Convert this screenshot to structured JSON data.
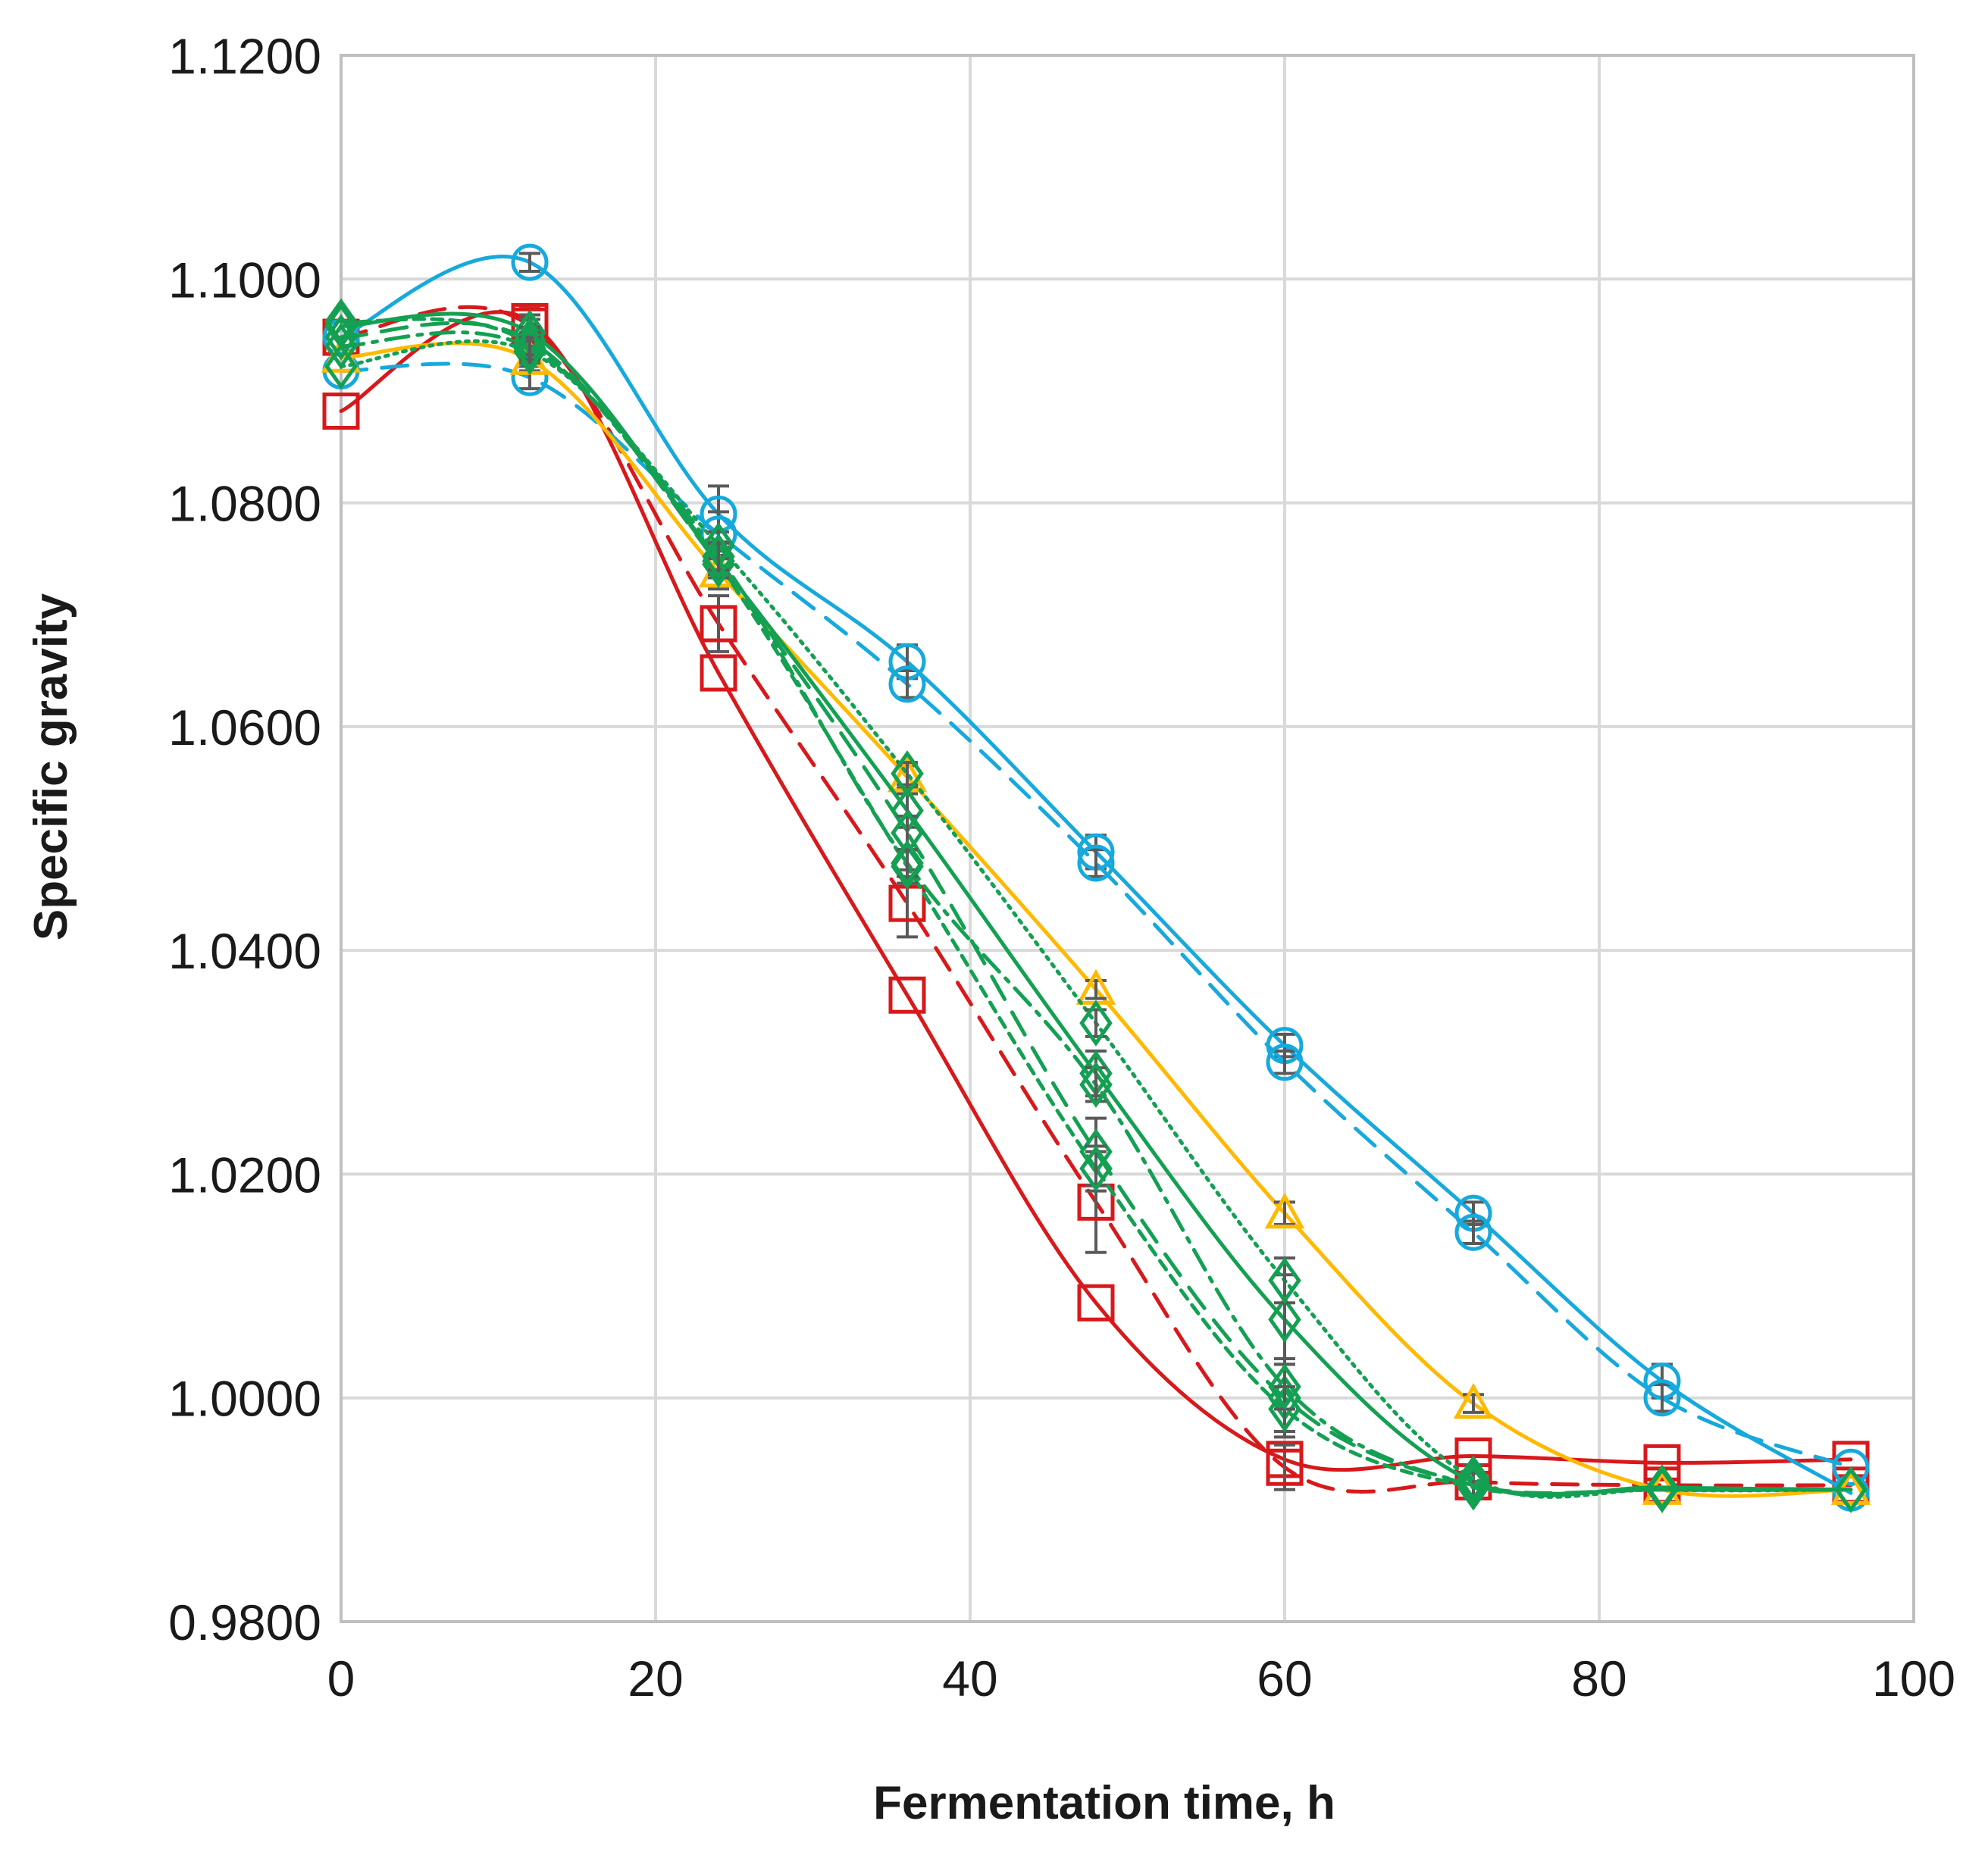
{
  "chart_data": {
    "type": "line",
    "title": "",
    "xlabel": "Fermentation time, h",
    "ylabel": "Specific gravity",
    "xlim": [
      0,
      100
    ],
    "ylim": [
      0.98,
      1.12
    ],
    "x_ticks": [
      0,
      20,
      40,
      60,
      80,
      100
    ],
    "x_tick_labels": [
      "0",
      "20",
      "40",
      "60",
      "80",
      "100"
    ],
    "y_ticks": [
      0.98,
      1.0,
      1.02,
      1.04,
      1.06,
      1.08,
      1.1,
      1.12
    ],
    "y_tick_labels": [
      "0.9800",
      "1.0000",
      "1.0200",
      "1.0400",
      "1.0600",
      "1.0800",
      "1.1000",
      "1.1200"
    ],
    "grid": true,
    "legend": "none",
    "x": [
      0,
      12,
      24,
      36,
      48,
      60,
      72,
      84,
      96
    ],
    "series": [
      {
        "name": "red solid",
        "color": "#d7191c",
        "dash": "solid",
        "marker": "square",
        "values": [
          1.0882,
          1.0962,
          1.0648,
          1.036,
          1.0085,
          0.9945,
          0.9948,
          0.9942,
          0.9945
        ],
        "err": [
          0,
          0.0012,
          0,
          0,
          0,
          0,
          0,
          0,
          0
        ]
      },
      {
        "name": "red dashed",
        "color": "#d7191c",
        "dash": "dashed",
        "marker": "square",
        "values": [
          1.0948,
          1.0958,
          1.0692,
          1.0442,
          1.0175,
          0.9938,
          0.9925,
          0.9922,
          0.9922
        ],
        "err": [
          0,
          0.001,
          0.0025,
          0.003,
          0.0045,
          0.002,
          0,
          0,
          0
        ]
      },
      {
        "name": "blue solid",
        "color": "#16a9dc",
        "dash": "solid",
        "marker": "circle",
        "values": [
          1.0948,
          1.1015,
          1.079,
          1.0658,
          1.0488,
          1.0315,
          1.0165,
          1.0015,
          0.9915
        ],
        "err": [
          0,
          0.0008,
          0.0025,
          0.0015,
          0.0015,
          0.001,
          0.001,
          0.0015,
          0
        ]
      },
      {
        "name": "blue dashed",
        "color": "#16a9dc",
        "dash": "dashed",
        "marker": "circle",
        "values": [
          1.0918,
          1.0912,
          1.0772,
          1.0638,
          1.0478,
          1.03,
          1.0148,
          1.0,
          0.9938
        ],
        "err": [
          0,
          0.001,
          0.002,
          0.0012,
          0.0012,
          0.001,
          0.001,
          0.0012,
          0
        ]
      },
      {
        "name": "yellow solid",
        "color": "#ffb900",
        "dash": "solid",
        "marker": "triangle",
        "values": [
          1.093,
          1.0928,
          1.0738,
          1.0555,
          1.0365,
          1.0165,
          0.9995,
          0.9918,
          0.9918
        ],
        "err": [
          0,
          0.001,
          0.0015,
          0.001,
          0.0008,
          0.001,
          0.0008,
          0,
          0
        ]
      },
      {
        "name": "green solid",
        "color": "#14a052",
        "dash": "solid",
        "marker": "diamond",
        "values": [
          1.0958,
          1.0952,
          1.0748,
          1.0525,
          1.029,
          1.007,
          0.9925,
          0.992,
          0.9918
        ],
        "err": [
          0,
          0.0012,
          0.0012,
          0.0015,
          0.002,
          0.004,
          0.0015,
          0,
          0
        ]
      },
      {
        "name": "green dashed",
        "color": "#14a052",
        "dash": "dashed",
        "marker": "diamond",
        "values": [
          1.0948,
          1.0945,
          1.0745,
          1.0505,
          1.022,
          1.0,
          0.9922,
          0.9918,
          0.9918
        ],
        "err": [
          0,
          0.0012,
          0.0012,
          0.0015,
          0.003,
          0.0035,
          0,
          0,
          0
        ]
      },
      {
        "name": "green short dashed",
        "color": "#14a052",
        "dash": "shortdash",
        "marker": "diamond",
        "values": [
          1.0962,
          1.0942,
          1.0745,
          1.0475,
          1.0205,
          0.999,
          0.992,
          0.9918,
          0.9918
        ],
        "err": [
          0,
          0.001,
          0.0012,
          0.0015,
          0.002,
          0.002,
          0,
          0,
          0
        ]
      },
      {
        "name": "green dotted",
        "color": "#14a052",
        "dash": "dotted",
        "marker": "diamond",
        "values": [
          1.0922,
          1.0935,
          1.0762,
          1.0558,
          1.0335,
          1.0105,
          0.9928,
          0.9918,
          0.9918
        ],
        "err": [
          0,
          0.001,
          0.0012,
          0.001,
          0.0012,
          0.002,
          0,
          0,
          0
        ]
      },
      {
        "name": "green dash-dot",
        "color": "#14a052",
        "dash": "dashdot",
        "marker": "diamond",
        "values": [
          1.094,
          1.0938,
          1.0752,
          1.0478,
          1.028,
          1.001,
          0.9922,
          0.9918,
          0.9918
        ],
        "err": [
          0,
          0.001,
          0.0012,
          0.0012,
          0.0015,
          0.002,
          0,
          0,
          0
        ]
      }
    ]
  }
}
